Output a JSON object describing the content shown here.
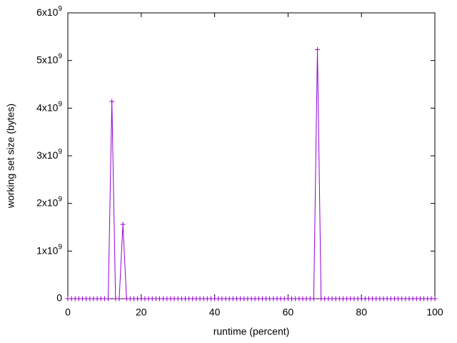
{
  "chart_data": {
    "type": "line",
    "xlabel": "runtime (percent)",
    "ylabel": "working set size (bytes)",
    "x": [
      0,
      1,
      2,
      3,
      4,
      5,
      6,
      7,
      8,
      9,
      10,
      11,
      12,
      13,
      14,
      15,
      16,
      17,
      18,
      19,
      20,
      21,
      22,
      23,
      24,
      25,
      26,
      27,
      28,
      29,
      30,
      31,
      32,
      33,
      34,
      35,
      36,
      37,
      38,
      39,
      40,
      41,
      42,
      43,
      44,
      45,
      46,
      47,
      48,
      49,
      50,
      51,
      52,
      53,
      54,
      55,
      56,
      57,
      58,
      59,
      60,
      61,
      62,
      63,
      64,
      65,
      66,
      67,
      68,
      69,
      70,
      71,
      72,
      73,
      74,
      75,
      76,
      77,
      78,
      79,
      80,
      81,
      82,
      83,
      84,
      85,
      86,
      87,
      88,
      89,
      90,
      91,
      92,
      93,
      94,
      95,
      96,
      97,
      98,
      99,
      100
    ],
    "series": [
      {
        "color": "#9400d3",
        "marker": "+",
        "values": [
          0,
          0,
          0,
          0,
          0,
          0,
          0,
          0,
          0,
          0,
          0,
          0,
          4140000000,
          0,
          0,
          1560000000,
          0,
          0,
          0,
          0,
          0,
          0,
          0,
          0,
          0,
          0,
          0,
          0,
          0,
          0,
          0,
          0,
          0,
          0,
          0,
          0,
          0,
          0,
          0,
          0,
          0,
          0,
          0,
          0,
          0,
          0,
          0,
          0,
          0,
          0,
          0,
          0,
          0,
          0,
          0,
          0,
          0,
          0,
          0,
          0,
          0,
          0,
          0,
          0,
          0,
          0,
          0,
          0,
          5230000000,
          0,
          0,
          0,
          0,
          0,
          0,
          0,
          0,
          0,
          0,
          0,
          0,
          0,
          0,
          0,
          0,
          0,
          0,
          0,
          0,
          0,
          0,
          0,
          0,
          0,
          0,
          0,
          0,
          0,
          0,
          0,
          0
        ]
      }
    ],
    "xlim": [
      0,
      100
    ],
    "xticks": [
      0,
      20,
      40,
      60,
      80,
      100
    ],
    "ylim": [
      0,
      6000000000
    ],
    "yticks": [
      0,
      {
        "value": 1000000000,
        "label": "1x10",
        "exponent": "9"
      },
      {
        "value": 2000000000,
        "label": "2x10",
        "exponent": "9"
      },
      {
        "value": 3000000000,
        "label": "3x10",
        "exponent": "9"
      },
      {
        "value": 4000000000,
        "label": "4x10",
        "exponent": "9"
      },
      {
        "value": 5000000000,
        "label": "5x10",
        "exponent": "9"
      },
      {
        "value": 6000000000,
        "label": "6x10",
        "exponent": "9"
      }
    ],
    "grid": false
  }
}
